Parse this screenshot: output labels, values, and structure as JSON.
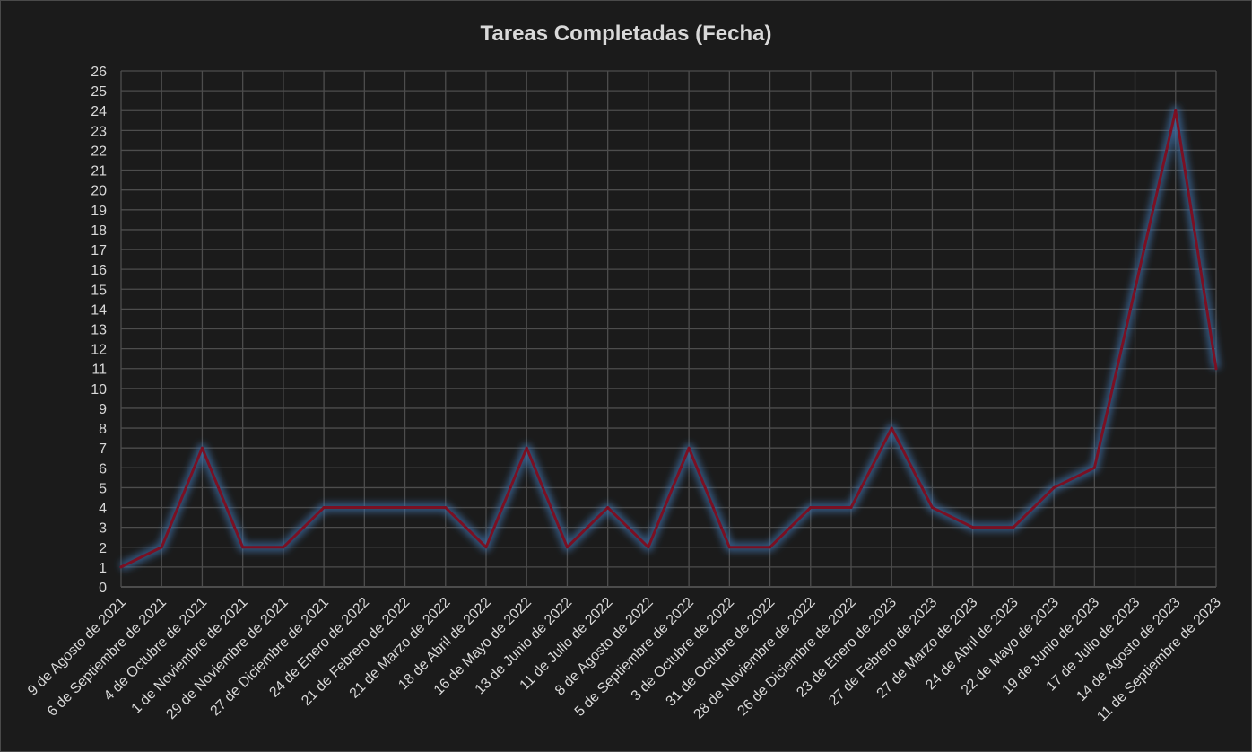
{
  "chart_data": {
    "type": "line",
    "title": "Tareas Completadas (Fecha)",
    "xlabel": "",
    "ylabel": "",
    "ylim": [
      0,
      26
    ],
    "grid": true,
    "legend": "none",
    "colors": {
      "line": "#7b1023",
      "glow": "#3e6fa5",
      "background": "#1b1b1b",
      "grid": "#4d4d4d",
      "text": "#d9d9d9"
    },
    "categories": [
      "9 de Agosto de 2021",
      "6 de Septiembre de 2021",
      "4 de Octubre de 2021",
      "1 de Noviembre de 2021",
      "29 de Noviembre de 2021",
      "27 de Diciembre de 2021",
      "24 de Enero de 2022",
      "21 de Febrero de 2022",
      "21 de Marzo de 2022",
      "18 de Abril de 2022",
      "16 de Mayo de 2022",
      "13 de Junio de 2022",
      "11 de Julio de 2022",
      "8 de Agosto de 2022",
      "5 de Septiembre de 2022",
      "3 de Octubre de 2022",
      "31 de Octubre de 2022",
      "28 de Noviembre de 2022",
      "26 de Diciembre de 2022",
      "23 de Enero de 2023",
      "27 de Febrero de 2023",
      "27 de Marzo de 2023",
      "24 de Abril de 2023",
      "22 de Mayo de 2023",
      "19 de Junio de 2023",
      "17 de Julio de 2023",
      "14 de Agosto de 2023",
      "11 de Septiembre de 2023"
    ],
    "series": [
      {
        "values": [
          1,
          2,
          7,
          2,
          2,
          4,
          4,
          4,
          4,
          2,
          7,
          2,
          4,
          2,
          7,
          2,
          2,
          4,
          4,
          8,
          4,
          3,
          3,
          5,
          6,
          15,
          24,
          11
        ]
      }
    ]
  }
}
